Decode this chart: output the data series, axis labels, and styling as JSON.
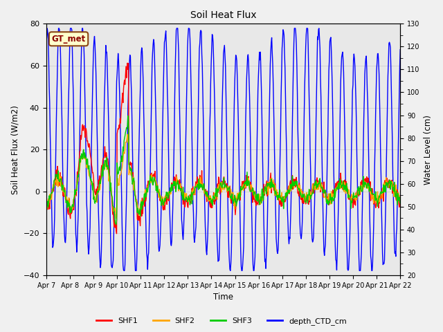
{
  "title": "Soil Heat Flux",
  "xlabel": "Time",
  "ylabel_left": "Soil Heat Flux (W/m2)",
  "ylabel_right": "Water Level (cm)",
  "ylim_left": [
    -40,
    80
  ],
  "ylim_right": [
    20,
    130
  ],
  "yticks_left": [
    -40,
    -20,
    0,
    20,
    40,
    60,
    80
  ],
  "yticks_right": [
    20,
    30,
    40,
    50,
    60,
    70,
    80,
    90,
    100,
    110,
    120,
    130
  ],
  "xtick_labels": [
    "Apr 7",
    "Apr 8",
    "Apr 9",
    "Apr 10",
    "Apr 11",
    "Apr 12",
    "Apr 13",
    "Apr 14",
    "Apr 15",
    "Apr 16",
    "Apr 17",
    "Apr 18",
    "Apr 19",
    "Apr 20",
    "Apr 21",
    "Apr 22"
  ],
  "annotation_text": "GT_met",
  "annotation_facecolor": "#FFFFCC",
  "annotation_edgecolor": "#8B4513",
  "colors": {
    "SHF1": "#FF0000",
    "SHF2": "#FFA500",
    "SHF3": "#00CC00",
    "depth_CTD_cm": "#0000FF"
  },
  "legend_labels": [
    "SHF1",
    "SHF2",
    "SHF3",
    "depth_CTD_cm"
  ],
  "plot_bg": "#E8E8E8",
  "fig_bg": "#F0F0F0",
  "linewidth": 1.0
}
